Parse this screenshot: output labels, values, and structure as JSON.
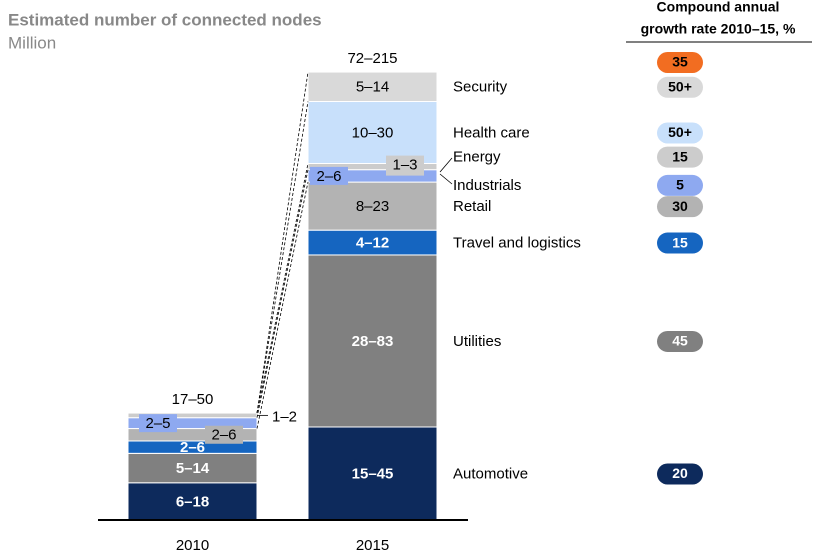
{
  "chart_data": {
    "type": "stacked_bar",
    "title": "Estimated number of connected nodes",
    "subtitle": "Million",
    "growth_header": [
      "Compound annual",
      "growth rate 2010–15, %"
    ],
    "categories": [
      "2010",
      "2015"
    ],
    "total_labels": [
      "17–50",
      "72–215"
    ],
    "total_growth": "35",
    "total_growth_color": "#f26d21",
    "series": [
      {
        "name": "Automotive",
        "color": "#0d2a5c",
        "low": [
          6,
          15
        ],
        "high": [
          18,
          45
        ],
        "value_labels": [
          "6–18",
          "15–45"
        ],
        "growth": "20"
      },
      {
        "name": "Utilities",
        "color": "#808080",
        "low": [
          5,
          28
        ],
        "high": [
          14,
          83
        ],
        "value_labels": [
          "5–14",
          "28–83"
        ],
        "growth": "45"
      },
      {
        "name": "Travel and logistics",
        "color": "#1565c0",
        "low": [
          2,
          4
        ],
        "high": [
          6,
          12
        ],
        "value_labels": [
          "2–6",
          "4–12"
        ],
        "growth": "15"
      },
      {
        "name": "Retail",
        "color": "#b3b3b3",
        "low": [
          2,
          8
        ],
        "high": [
          6,
          23
        ],
        "value_labels": [
          "2–6",
          "8–23"
        ],
        "growth": "30"
      },
      {
        "name": "Industrials",
        "color": "#8ea9f0",
        "low": [
          2,
          2
        ],
        "high": [
          5,
          6
        ],
        "value_labels": [
          "2–5",
          "2–6"
        ],
        "growth": "5"
      },
      {
        "name": "Energy",
        "color": "#cccccc",
        "low": [
          1,
          1
        ],
        "high": [
          2,
          3
        ],
        "value_labels": [
          "1–2",
          "1–3"
        ],
        "growth": "15"
      },
      {
        "name": "Health care",
        "color": "#c8e0fb",
        "low": [
          null,
          10
        ],
        "high": [
          null,
          30
        ],
        "value_labels": [
          null,
          "10–30"
        ],
        "growth": "50+"
      },
      {
        "name": "Security",
        "color": "#d9d9d9",
        "low": [
          null,
          5
        ],
        "high": [
          null,
          14
        ],
        "value_labels": [
          null,
          "5–14"
        ],
        "growth": "50+"
      }
    ]
  }
}
